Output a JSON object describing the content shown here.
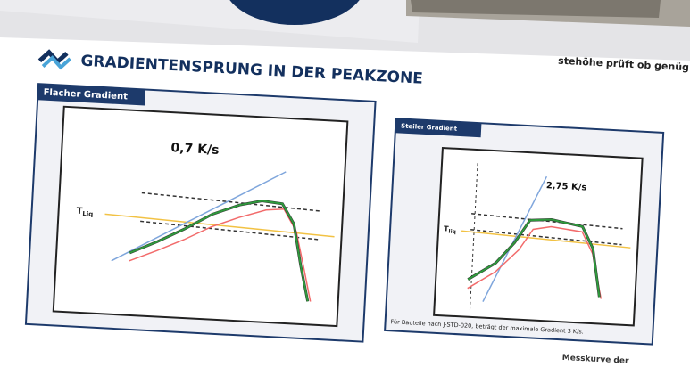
{
  "header": {
    "title": "GRADIENTENSPRUNG IN DER PEAKZONE"
  },
  "top_note": "stehöhe prüft ob genüg",
  "panels": [
    {
      "tab": "Flacher Gradient",
      "rate": "0,7 K/s",
      "threshold": "T",
      "threshold_sub": "Liq"
    },
    {
      "tab": "Steiler Gradient",
      "rate": "2,75 K/s",
      "threshold": "T",
      "threshold_sub": "liq",
      "footnote": "Für Bauteile nach J-STD-020, beträgt der maximale Gradient 3 K/s."
    }
  ],
  "bottom_note": "Messkurve der"
}
